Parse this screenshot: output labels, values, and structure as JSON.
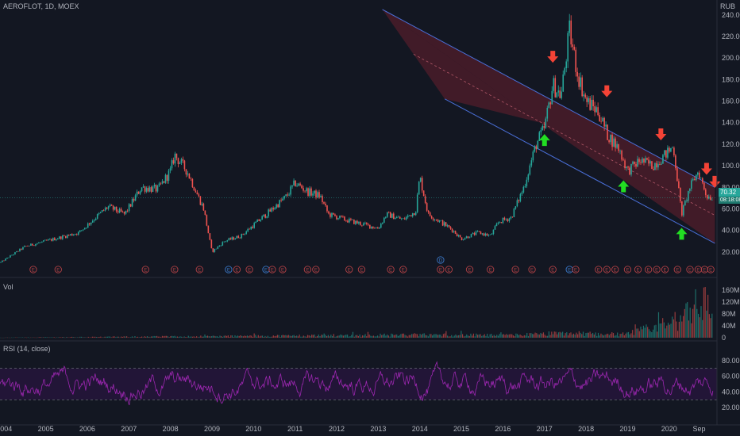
{
  "header": {
    "symbol_line": "AEROFLOT, 1D, MOEX",
    "currency": "RUB"
  },
  "price_badge": {
    "value": "70.32",
    "countdown": "08:18:08"
  },
  "colors": {
    "background": "#131722",
    "candle_up": "#26a69a",
    "candle_down": "#ef5350",
    "channel_fill": "#7a2230",
    "channel_line": "#4a6fd8",
    "arrow_up": "#22dd22",
    "arrow_down": "#f44336",
    "rsi_line": "#9c27b0",
    "rsi_band": "#2a1640",
    "earnings_red": "#b04045",
    "dividend_blue": "#3a78c8"
  },
  "volume_pane": {
    "title": "Vol"
  },
  "rsi_pane": {
    "title": "RSI (14, close)"
  },
  "chart_data": [
    {
      "type": "candlestick",
      "title": "AEROFLOT, 1D, MOEX",
      "unit": "RUB",
      "xlabel": "",
      "ylabel": "",
      "x_ticks": [
        "2004",
        "2005",
        "2006",
        "2007",
        "2008",
        "2009",
        "2010",
        "2011",
        "2012",
        "2013",
        "2014",
        "2015",
        "2016",
        "2017",
        "2018",
        "2019",
        "2020",
        "Sep"
      ],
      "y_ticks": [
        20,
        40,
        60,
        80,
        100,
        120,
        140,
        160,
        180,
        200,
        220,
        240
      ],
      "ylim": [
        0,
        245
      ],
      "last_price": 70.32,
      "price_path": [
        {
          "x": 2003.9,
          "y": 10
        },
        {
          "x": 2004.5,
          "y": 25
        },
        {
          "x": 2005.2,
          "y": 32
        },
        {
          "x": 2005.8,
          "y": 38
        },
        {
          "x": 2006.2,
          "y": 52
        },
        {
          "x": 2006.5,
          "y": 62
        },
        {
          "x": 2006.9,
          "y": 55
        },
        {
          "x": 2007.3,
          "y": 80
        },
        {
          "x": 2007.7,
          "y": 78
        },
        {
          "x": 2008.0,
          "y": 95
        },
        {
          "x": 2008.1,
          "y": 110
        },
        {
          "x": 2008.4,
          "y": 95
        },
        {
          "x": 2008.8,
          "y": 60
        },
        {
          "x": 2009.0,
          "y": 20
        },
        {
          "x": 2009.3,
          "y": 30
        },
        {
          "x": 2009.7,
          "y": 35
        },
        {
          "x": 2010.0,
          "y": 45
        },
        {
          "x": 2010.4,
          "y": 58
        },
        {
          "x": 2010.8,
          "y": 72
        },
        {
          "x": 2011.0,
          "y": 84
        },
        {
          "x": 2011.3,
          "y": 76
        },
        {
          "x": 2011.6,
          "y": 72
        },
        {
          "x": 2011.8,
          "y": 55
        },
        {
          "x": 2012.2,
          "y": 50
        },
        {
          "x": 2012.6,
          "y": 46
        },
        {
          "x": 2013.0,
          "y": 42
        },
        {
          "x": 2013.2,
          "y": 55
        },
        {
          "x": 2013.6,
          "y": 50
        },
        {
          "x": 2013.9,
          "y": 58
        },
        {
          "x": 2014.0,
          "y": 90
        },
        {
          "x": 2014.2,
          "y": 55
        },
        {
          "x": 2014.5,
          "y": 48
        },
        {
          "x": 2014.8,
          "y": 40
        },
        {
          "x": 2015.0,
          "y": 32
        },
        {
          "x": 2015.4,
          "y": 38
        },
        {
          "x": 2015.7,
          "y": 35
        },
        {
          "x": 2015.9,
          "y": 48
        },
        {
          "x": 2016.2,
          "y": 52
        },
        {
          "x": 2016.5,
          "y": 80
        },
        {
          "x": 2016.8,
          "y": 120
        },
        {
          "x": 2017.0,
          "y": 135
        },
        {
          "x": 2017.2,
          "y": 175
        },
        {
          "x": 2017.4,
          "y": 165
        },
        {
          "x": 2017.6,
          "y": 225
        },
        {
          "x": 2017.8,
          "y": 185
        },
        {
          "x": 2018.0,
          "y": 160
        },
        {
          "x": 2018.3,
          "y": 150
        },
        {
          "x": 2018.5,
          "y": 130
        },
        {
          "x": 2018.8,
          "y": 115
        },
        {
          "x": 2019.0,
          "y": 95
        },
        {
          "x": 2019.3,
          "y": 105
        },
        {
          "x": 2019.6,
          "y": 100
        },
        {
          "x": 2019.9,
          "y": 110
        },
        {
          "x": 2020.1,
          "y": 118
        },
        {
          "x": 2020.3,
          "y": 55
        },
        {
          "x": 2020.5,
          "y": 80
        },
        {
          "x": 2020.7,
          "y": 95
        },
        {
          "x": 2020.9,
          "y": 72
        },
        {
          "x": 2021.05,
          "y": 70.32
        }
      ],
      "channel": {
        "upper": [
          {
            "x": 2013.1,
            "y": 245
          },
          {
            "x": 2021.1,
            "y": 80
          }
        ],
        "lower": [
          {
            "x": 2016.9,
            "y": 140
          },
          {
            "x": 2021.1,
            "y": 28
          }
        ]
      },
      "annotations": [
        {
          "kind": "arrow-up",
          "x": 2017.0,
          "y": 125
        },
        {
          "kind": "arrow-down",
          "x": 2017.2,
          "y": 200
        },
        {
          "kind": "arrow-down",
          "x": 2018.5,
          "y": 168
        },
        {
          "kind": "arrow-up",
          "x": 2018.9,
          "y": 82
        },
        {
          "kind": "arrow-down",
          "x": 2019.8,
          "y": 128
        },
        {
          "kind": "arrow-up",
          "x": 2020.3,
          "y": 38
        },
        {
          "kind": "arrow-down",
          "x": 2020.9,
          "y": 96
        },
        {
          "kind": "arrow-down",
          "x": 2021.1,
          "y": 84
        }
      ],
      "event_markers": [
        {
          "x": 2004.7,
          "kind": "earnings"
        },
        {
          "x": 2005.3,
          "kind": "earnings"
        },
        {
          "x": 2007.4,
          "kind": "earnings"
        },
        {
          "x": 2008.1,
          "kind": "earnings"
        },
        {
          "x": 2008.7,
          "kind": "earnings"
        },
        {
          "x": 2009.4,
          "kind": "dividend"
        },
        {
          "x": 2009.6,
          "kind": "earnings"
        },
        {
          "x": 2009.9,
          "kind": "earnings"
        },
        {
          "x": 2010.3,
          "kind": "dividend"
        },
        {
          "x": 2010.45,
          "kind": "earnings"
        },
        {
          "x": 2010.7,
          "kind": "earnings"
        },
        {
          "x": 2011.3,
          "kind": "earnings"
        },
        {
          "x": 2011.5,
          "kind": "earnings"
        },
        {
          "x": 2012.3,
          "kind": "earnings"
        },
        {
          "x": 2012.6,
          "kind": "earnings"
        },
        {
          "x": 2013.3,
          "kind": "earnings"
        },
        {
          "x": 2013.6,
          "kind": "earnings"
        },
        {
          "x": 2014.5,
          "kind": "earnings"
        },
        {
          "x": 2014.7,
          "kind": "earnings"
        },
        {
          "x": 2015.2,
          "kind": "earnings"
        },
        {
          "x": 2015.7,
          "kind": "earnings"
        },
        {
          "x": 2016.3,
          "kind": "earnings"
        },
        {
          "x": 2016.7,
          "kind": "earnings"
        },
        {
          "x": 2017.2,
          "kind": "earnings"
        },
        {
          "x": 2017.6,
          "kind": "dividend"
        },
        {
          "x": 2017.75,
          "kind": "earnings"
        },
        {
          "x": 2018.3,
          "kind": "earnings"
        },
        {
          "x": 2018.5,
          "kind": "earnings"
        },
        {
          "x": 2018.7,
          "kind": "earnings"
        },
        {
          "x": 2019.0,
          "kind": "earnings"
        },
        {
          "x": 2019.25,
          "kind": "earnings"
        },
        {
          "x": 2019.5,
          "kind": "earnings"
        },
        {
          "x": 2019.7,
          "kind": "earnings"
        },
        {
          "x": 2019.9,
          "kind": "earnings"
        },
        {
          "x": 2020.2,
          "kind": "earnings"
        },
        {
          "x": 2020.5,
          "kind": "earnings"
        },
        {
          "x": 2020.7,
          "kind": "earnings"
        },
        {
          "x": 2020.85,
          "kind": "earnings"
        },
        {
          "x": 2021.0,
          "kind": "earnings"
        }
      ],
      "dividend_flag": {
        "x": 2014.5,
        "label": "D"
      },
      "earnings_label": "E"
    },
    {
      "type": "bar",
      "title": "Vol",
      "y_ticks": [
        "0",
        "40M",
        "80M",
        "120M",
        "160M"
      ],
      "ylim": [
        0,
        170
      ],
      "volume_path": [
        {
          "x": 2003.9,
          "y": 0.5
        },
        {
          "x": 2009.0,
          "y": 6
        },
        {
          "x": 2014.0,
          "y": 12
        },
        {
          "x": 2016.0,
          "y": 10
        },
        {
          "x": 2017.6,
          "y": 18
        },
        {
          "x": 2019.0,
          "y": 14
        },
        {
          "x": 2020.2,
          "y": 70
        },
        {
          "x": 2020.5,
          "y": 130
        },
        {
          "x": 2020.8,
          "y": 150
        },
        {
          "x": 2021.05,
          "y": 100
        }
      ]
    },
    {
      "type": "line",
      "title": "RSI (14, close)",
      "y_ticks": [
        20,
        40,
        60,
        80
      ],
      "ylim": [
        0,
        95
      ],
      "bands": [
        30,
        70
      ],
      "range_min": 5,
      "range_max": 85,
      "typical_center": 50
    }
  ]
}
